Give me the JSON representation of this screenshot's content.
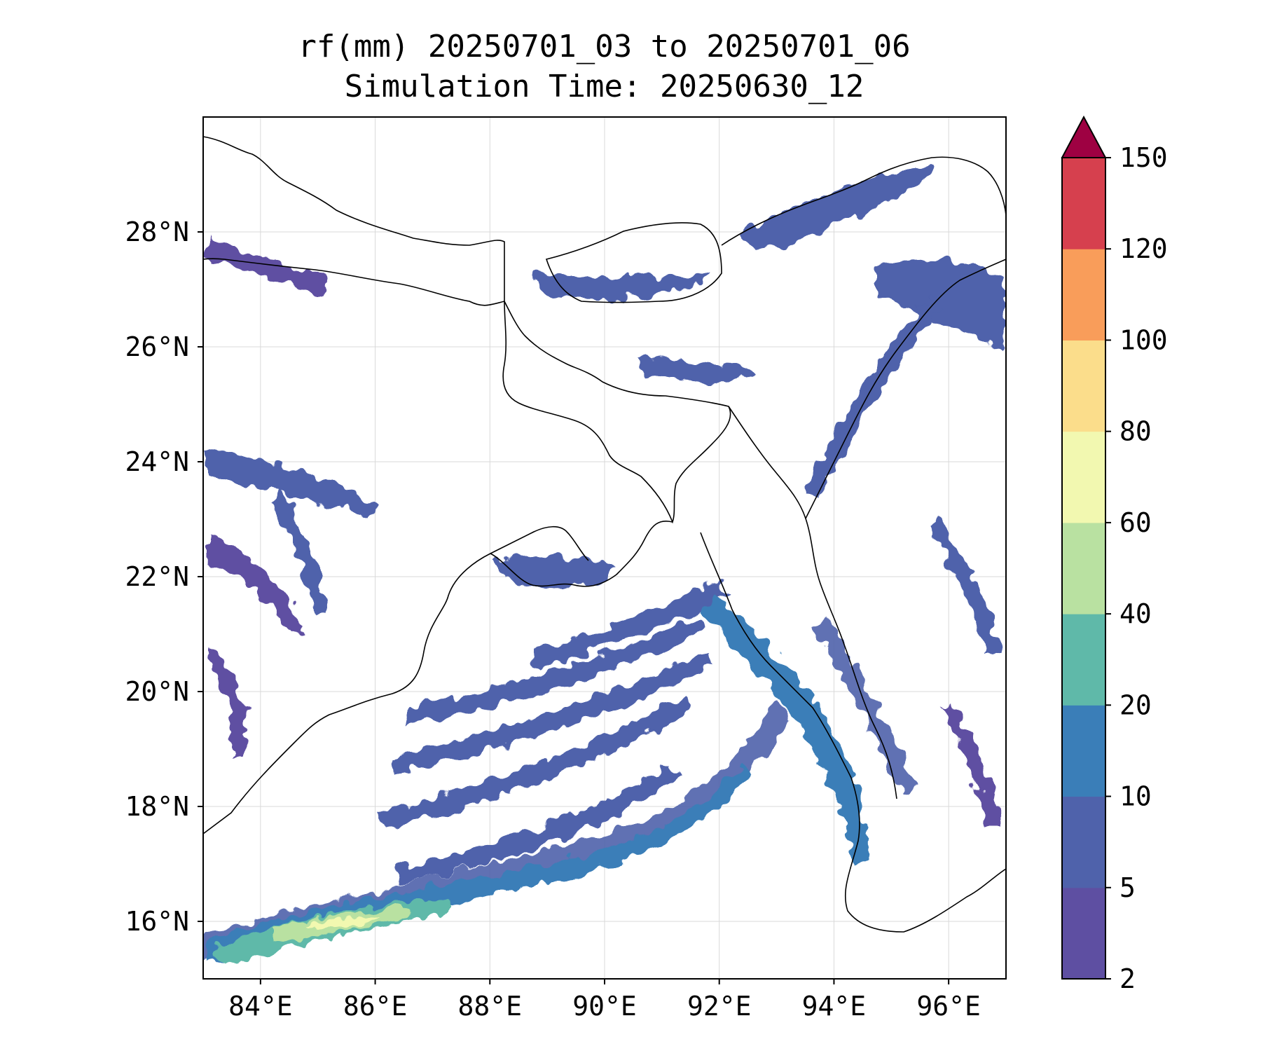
{
  "title": {
    "line1": "rf(mm) 20250701_03 to 20250701_06",
    "line2": "Simulation Time: 20250630_12"
  },
  "map": {
    "extent": {
      "lon_min": 83.0,
      "lon_max": 97.0,
      "lat_min": 15.0,
      "lat_max": 30.0
    },
    "lon_ticks": [
      "84°E",
      "86°E",
      "88°E",
      "90°E",
      "92°E",
      "94°E",
      "96°E"
    ],
    "lon_tick_values": [
      84,
      86,
      88,
      90,
      92,
      94,
      96
    ],
    "lat_ticks": [
      "16°N",
      "18°N",
      "20°N",
      "22°N",
      "24°N",
      "26°N",
      "28°N"
    ],
    "lat_tick_values": [
      16,
      18,
      20,
      22,
      24,
      26,
      28
    ],
    "gridlines": true,
    "coastline_color": "#000000",
    "field": "rainfall accumulation (mm)",
    "features": [
      {
        "lon": 86.0,
        "lat": 15.9,
        "value": 70,
        "desc": "heavy band SE of Andhra coast"
      },
      {
        "lon": 88.5,
        "lat": 16.6,
        "value": 15,
        "desc": "SW-NE oriented rain bands over Bay of Bengal"
      },
      {
        "lon": 93.5,
        "lat": 20.0,
        "value": 15,
        "desc": "Rakhine coast maximum"
      },
      {
        "lon": 94.5,
        "lat": 27.0,
        "value": 5,
        "desc": "NE India / Himalaya scattered rain"
      }
    ]
  },
  "colorbar": {
    "levels": [
      2,
      5,
      10,
      20,
      40,
      60,
      80,
      100,
      120,
      150
    ],
    "labels": [
      "2",
      "5",
      "10",
      "20",
      "40",
      "60",
      "80",
      "100",
      "120",
      "150"
    ],
    "colors": [
      "#5e4fa2",
      "#4f62ab",
      "#3a7eb8",
      "#5fb9a9",
      "#b9e1a1",
      "#f2f8b0",
      "#fbdd8b",
      "#f99d5a",
      "#d6404e",
      "#9e0142"
    ],
    "extend": "max"
  }
}
